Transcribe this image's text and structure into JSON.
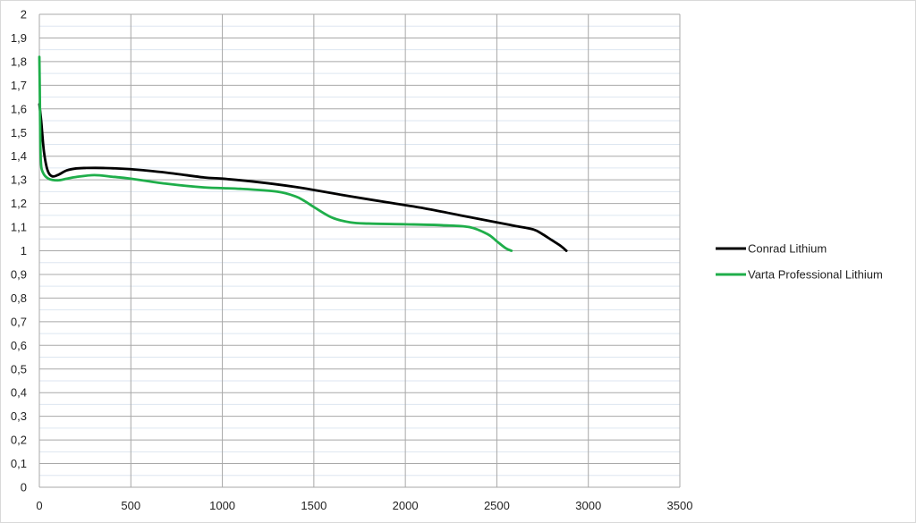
{
  "chart_data": {
    "type": "line",
    "title": "",
    "xlabel": "",
    "ylabel": "",
    "xlim": [
      0,
      3500
    ],
    "ylim": [
      0,
      2
    ],
    "x_ticks": [
      0,
      500,
      1000,
      1500,
      2000,
      2500,
      3000,
      3500
    ],
    "x_tick_labels": [
      "0",
      "500",
      "1000",
      "1500",
      "2000",
      "2500",
      "3000",
      "3500"
    ],
    "y_ticks": [
      0,
      0.1,
      0.2,
      0.3,
      0.4,
      0.5,
      0.6,
      0.7,
      0.8,
      0.9,
      1,
      1.1,
      1.2,
      1.3,
      1.4,
      1.5,
      1.6,
      1.7,
      1.8,
      1.9,
      2
    ],
    "y_tick_labels": [
      "0",
      "0,1",
      "0,2",
      "0,3",
      "0,4",
      "0,5",
      "0,6",
      "0,7",
      "0,8",
      "0,9",
      "1",
      "1,1",
      "1,2",
      "1,3",
      "1,4",
      "1,5",
      "1,6",
      "1,7",
      "1,8",
      "1,9",
      "2"
    ],
    "grid": {
      "major_x": true,
      "major_y": true,
      "minor_y": true
    },
    "legend_position": "right",
    "series": [
      {
        "name": "Conrad Lithium",
        "color": "#000000",
        "x": [
          0,
          10,
          25,
          45,
          70,
          100,
          150,
          200,
          250,
          350,
          500,
          700,
          900,
          1000,
          1200,
          1400,
          1500,
          1700,
          1900,
          2100,
          2300,
          2500,
          2600,
          2700,
          2750,
          2800,
          2850,
          2880
        ],
        "y": [
          1.62,
          1.55,
          1.42,
          1.34,
          1.315,
          1.32,
          1.34,
          1.348,
          1.35,
          1.35,
          1.345,
          1.33,
          1.31,
          1.305,
          1.29,
          1.27,
          1.257,
          1.23,
          1.205,
          1.18,
          1.15,
          1.12,
          1.105,
          1.09,
          1.07,
          1.045,
          1.02,
          1.0
        ]
      },
      {
        "name": "Varta Professional Lithium",
        "color": "#1fae4a",
        "x": [
          0,
          2,
          4,
          8,
          20,
          50,
          100,
          150,
          200,
          300,
          400,
          500,
          700,
          900,
          1100,
          1300,
          1400,
          1450,
          1500,
          1600,
          1700,
          1800,
          2000,
          2200,
          2350,
          2450,
          2500,
          2550,
          2580
        ],
        "y": [
          1.82,
          1.7,
          1.55,
          1.38,
          1.33,
          1.305,
          1.298,
          1.305,
          1.312,
          1.32,
          1.313,
          1.305,
          1.283,
          1.268,
          1.262,
          1.25,
          1.23,
          1.21,
          1.185,
          1.14,
          1.12,
          1.115,
          1.112,
          1.108,
          1.1,
          1.07,
          1.04,
          1.01,
          1.0
        ]
      }
    ]
  }
}
